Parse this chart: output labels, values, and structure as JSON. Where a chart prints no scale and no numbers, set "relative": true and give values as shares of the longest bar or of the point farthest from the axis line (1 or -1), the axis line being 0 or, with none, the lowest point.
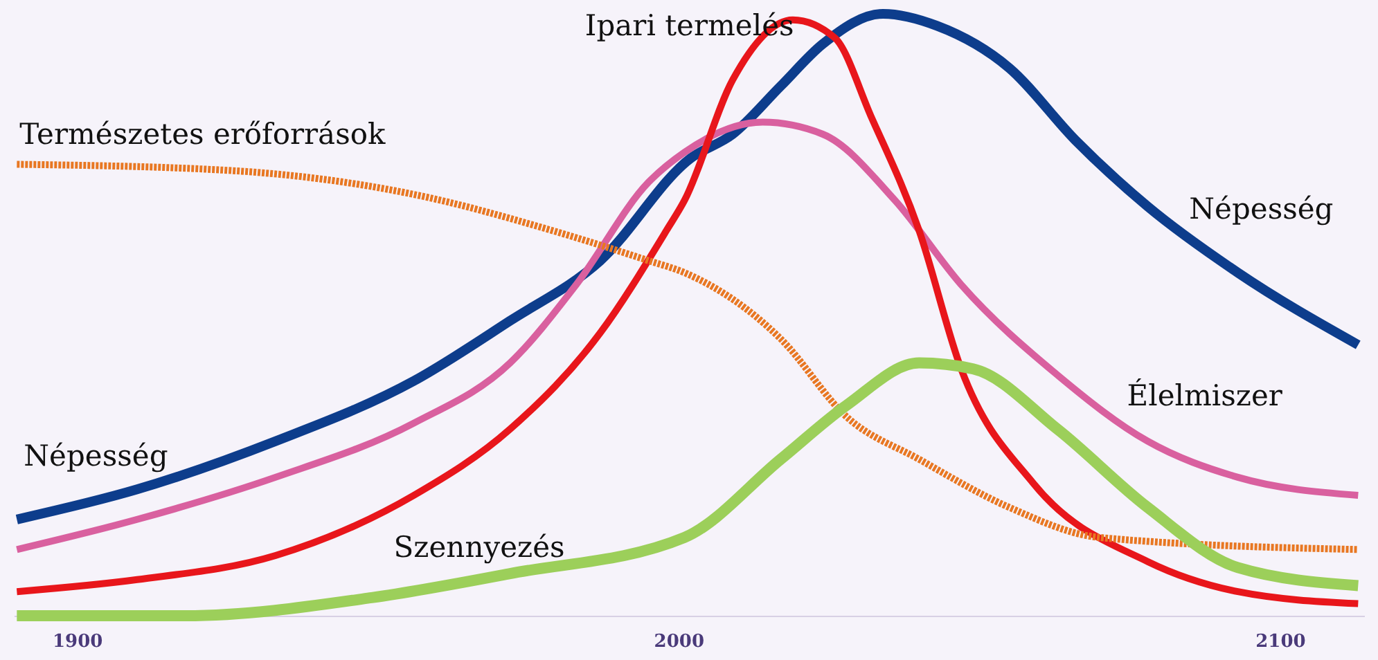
{
  "chart_data": {
    "type": "line",
    "relative": true,
    "xlim": [
      1889.5,
      2114
    ],
    "xticks": [
      1900,
      2000,
      2100
    ],
    "grid": false,
    "series": [
      {
        "name": "Népesség",
        "color": "#0d3d8c",
        "x": [
          1890,
          1910,
          1933,
          1956,
          1972,
          1987,
          2002,
          2009,
          2017,
          2024,
          2034,
          2043,
          2055,
          2066,
          2078,
          2093,
          2113
        ],
        "values": [
          0.16,
          0.21,
          0.29,
          0.39,
          0.49,
          0.59,
          0.76,
          0.8,
          0.88,
          0.95,
          1.0,
          0.98,
          0.91,
          0.79,
          0.68,
          0.57,
          0.45
        ]
      },
      {
        "name": "Élelmiszer",
        "color": "#d9609f",
        "x": [
          1890,
          1910,
          1933,
          1956,
          1972,
          1983,
          1995,
          2001,
          2014,
          2024,
          2036,
          2047,
          2063,
          2078,
          2093,
          2113
        ],
        "values": [
          0.11,
          0.16,
          0.23,
          0.32,
          0.42,
          0.55,
          0.72,
          0.77,
          0.82,
          0.8,
          0.69,
          0.55,
          0.4,
          0.29,
          0.23,
          0.2
        ]
      },
      {
        "name": "Ipari termelés",
        "color": "#e8161b",
        "x": [
          1890,
          1910,
          1933,
          1956,
          1972,
          1987,
          1998,
          2001,
          2009,
          2019,
          2026,
          2032,
          2040,
          2047,
          2059,
          2078,
          2093,
          2113
        ],
        "values": [
          0.04,
          0.06,
          0.1,
          0.2,
          0.31,
          0.47,
          0.64,
          0.69,
          0.89,
          0.99,
          0.96,
          0.83,
          0.64,
          0.41,
          0.22,
          0.09,
          0.04,
          0.02
        ]
      },
      {
        "name": "Természetes erőforrások",
        "color": "#e87722",
        "line_style": "dashed",
        "x": [
          1890,
          1925,
          1956,
          1979,
          1995,
          2001,
          2017,
          2028,
          2040,
          2055,
          2070,
          2113
        ],
        "values": [
          0.75,
          0.74,
          0.7,
          0.64,
          0.59,
          0.57,
          0.46,
          0.33,
          0.26,
          0.18,
          0.13,
          0.11
        ]
      },
      {
        "name": "Szennyezés",
        "color": "#9ccf5a",
        "x": [
          1890,
          1918,
          1949,
          1972,
          2001,
          2017,
          2028,
          2040,
          2049,
          2063,
          2078,
          2093,
          2113
        ],
        "values": [
          0.0,
          0.0,
          0.03,
          0.07,
          0.13,
          0.26,
          0.35,
          0.42,
          0.41,
          0.31,
          0.18,
          0.08,
          0.05
        ]
      }
    ]
  }
}
